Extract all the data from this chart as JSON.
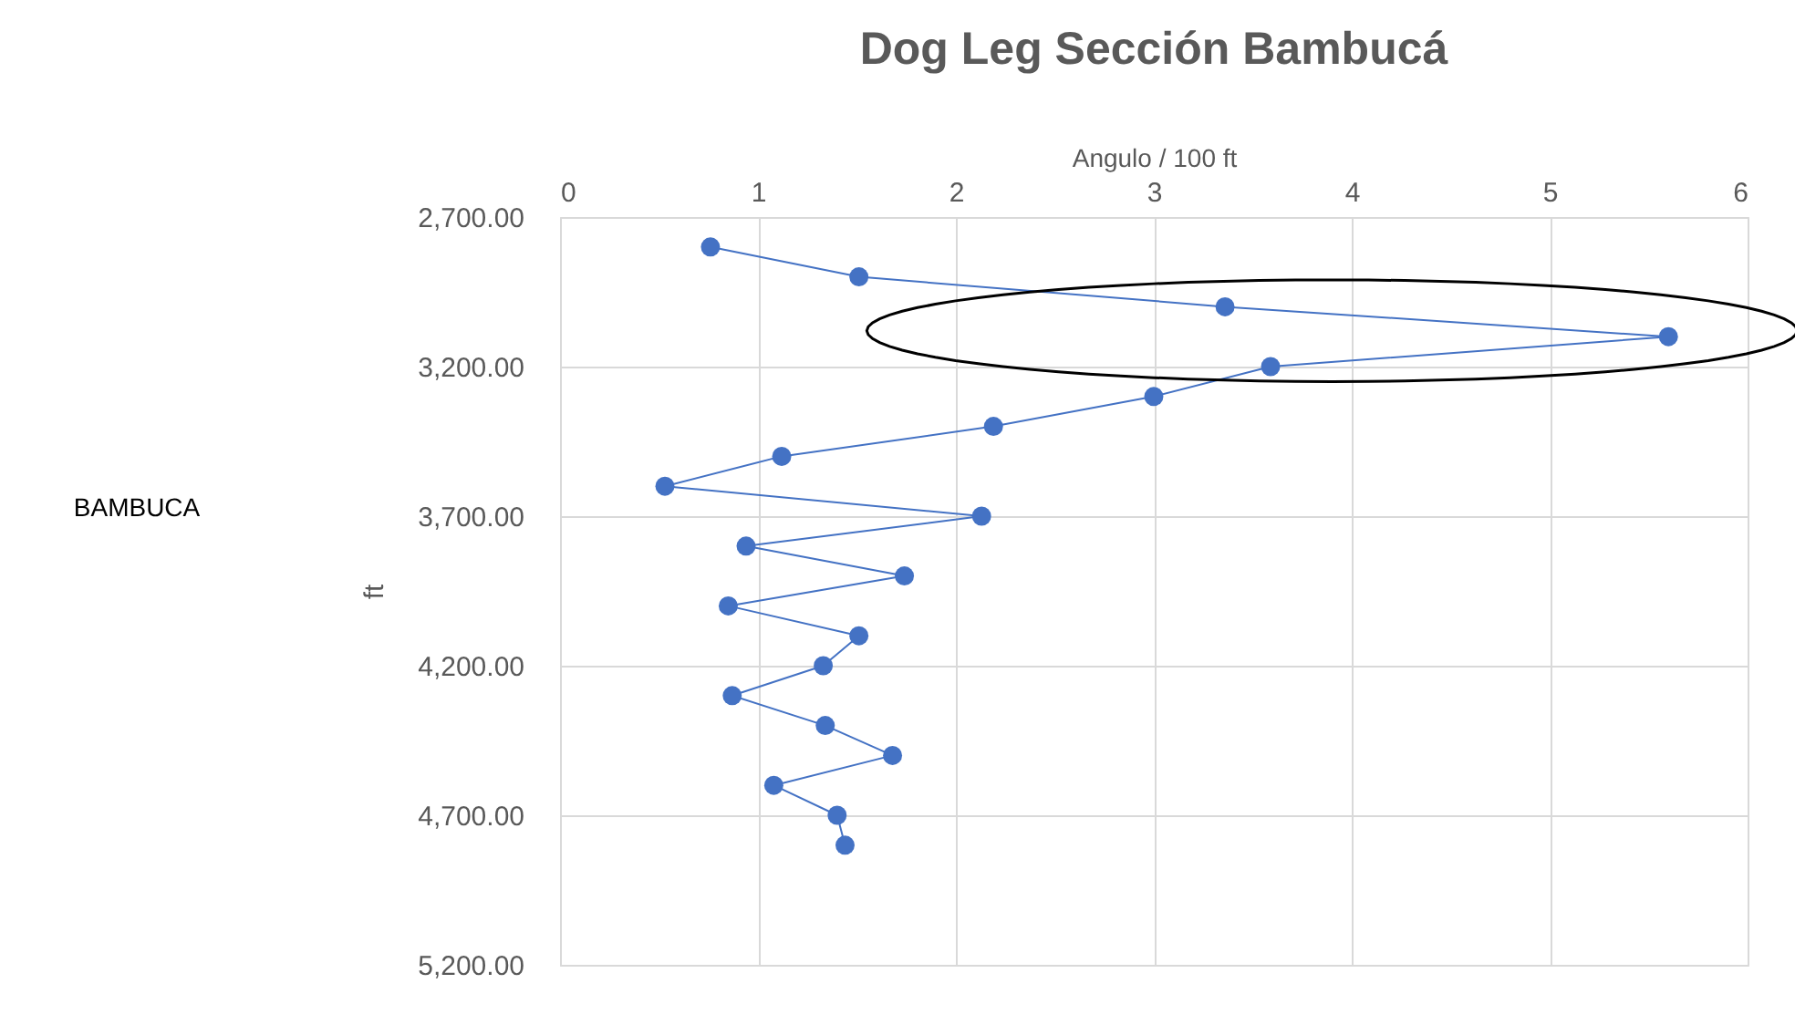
{
  "chart_data": {
    "type": "line",
    "title": "Dog Leg Sección Bambucá",
    "xlabel": "Angulo / 100 ft",
    "ylabel": "ft",
    "annotations": [
      "BAMBUCA"
    ],
    "x": [
      0.76,
      1.51,
      3.36,
      5.6,
      3.59,
      3.0,
      2.19,
      1.12,
      0.53,
      2.13,
      0.94,
      1.74,
      0.85,
      1.51,
      1.33,
      0.87,
      1.34,
      1.68,
      1.08,
      1.4,
      1.44
    ],
    "series": [
      {
        "color": "#4472c4",
        "values": [
          2800,
          2900,
          3000,
          3100,
          3200,
          3300,
          3400,
          3500,
          3600,
          3700,
          3800,
          3900,
          4000,
          4100,
          4200,
          4300,
          4400,
          4500,
          4600,
          4700,
          4800
        ]
      }
    ],
    "xlim": [
      0,
      6
    ],
    "xticks": [
      0,
      1,
      2,
      3,
      4,
      5,
      6
    ],
    "ylim": [
      5200,
      2700
    ],
    "yticks": [
      {
        "value": 2700,
        "label": "2,700.00"
      },
      {
        "value": 3200,
        "label": "3,200.00"
      },
      {
        "value": 3700,
        "label": "3,700.00"
      },
      {
        "value": 4200,
        "label": "4,200.00"
      },
      {
        "value": 4700,
        "label": "4,700.00"
      },
      {
        "value": 5200,
        "label": "5,200.00"
      }
    ],
    "grid": true,
    "marker": "circle",
    "line_style": "solid"
  }
}
